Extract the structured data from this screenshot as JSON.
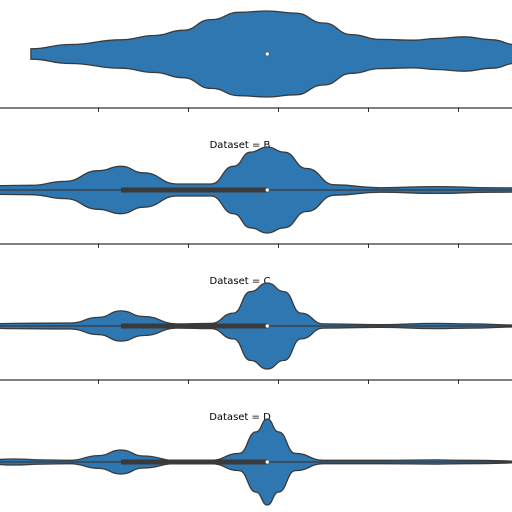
{
  "chart_data": {
    "type": "violin",
    "orientation": "horizontal",
    "panels": [
      {
        "title": "",
        "median": 0.0,
        "iqr": [
          0.0,
          0.0
        ],
        "whisker": [
          0.0,
          0.0
        ],
        "range": [
          -4.2,
          4.4
        ],
        "density": [
          [
            -4.2,
            0.12
          ],
          [
            -3.5,
            0.22
          ],
          [
            -2.6,
            0.33
          ],
          [
            -2.0,
            0.43
          ],
          [
            -1.5,
            0.55
          ],
          [
            -1.0,
            0.8
          ],
          [
            -0.5,
            0.97
          ],
          [
            0.0,
            1.0
          ],
          [
            0.5,
            0.95
          ],
          [
            1.0,
            0.72
          ],
          [
            1.5,
            0.45
          ],
          [
            2.0,
            0.34
          ],
          [
            2.6,
            0.32
          ],
          [
            3.0,
            0.36
          ],
          [
            3.5,
            0.4
          ],
          [
            4.0,
            0.33
          ],
          [
            4.4,
            0.22
          ]
        ]
      },
      {
        "title": "Dataset = B",
        "median": 0.0,
        "iqr": [
          -2.6,
          0.0
        ],
        "whisker": [
          -5.0,
          5.0
        ],
        "range": [
          -5.0,
          5.0
        ],
        "density": [
          [
            -5.0,
            0.1
          ],
          [
            -4.2,
            0.11
          ],
          [
            -3.6,
            0.2
          ],
          [
            -3.0,
            0.45
          ],
          [
            -2.6,
            0.55
          ],
          [
            -2.2,
            0.4
          ],
          [
            -1.6,
            0.14
          ],
          [
            -1.0,
            0.14
          ],
          [
            -0.6,
            0.55
          ],
          [
            -0.3,
            0.88
          ],
          [
            0.0,
            1.0
          ],
          [
            0.3,
            0.88
          ],
          [
            0.7,
            0.5
          ],
          [
            1.2,
            0.12
          ],
          [
            2.0,
            0.05
          ],
          [
            3.0,
            0.08
          ],
          [
            4.0,
            0.05
          ],
          [
            5.0,
            0.04
          ]
        ]
      },
      {
        "title": "Dataset = C",
        "median": 0.0,
        "iqr": [
          -2.6,
          0.0
        ],
        "whisker": [
          -5.0,
          4.5
        ],
        "range": [
          -5.0,
          4.5
        ],
        "density": [
          [
            -5.0,
            0.05
          ],
          [
            -4.5,
            0.06
          ],
          [
            -3.5,
            0.07
          ],
          [
            -3.0,
            0.2
          ],
          [
            -2.6,
            0.35
          ],
          [
            -2.2,
            0.22
          ],
          [
            -1.6,
            0.05
          ],
          [
            -1.0,
            0.06
          ],
          [
            -0.6,
            0.3
          ],
          [
            -0.3,
            0.8
          ],
          [
            0.0,
            1.0
          ],
          [
            0.3,
            0.8
          ],
          [
            0.6,
            0.3
          ],
          [
            1.0,
            0.05
          ],
          [
            2.0,
            0.03
          ],
          [
            3.0,
            0.06
          ],
          [
            3.6,
            0.05
          ],
          [
            4.5,
            0.02
          ]
        ]
      },
      {
        "title": "Dataset = D",
        "median": 0.0,
        "iqr": [
          -2.6,
          0.0
        ],
        "whisker": [
          -5.0,
          5.0
        ],
        "range": [
          -5.0,
          5.0
        ],
        "density": [
          [
            -5.0,
            0.05
          ],
          [
            -4.5,
            0.07
          ],
          [
            -4.0,
            0.05
          ],
          [
            -3.5,
            0.04
          ],
          [
            -3.0,
            0.15
          ],
          [
            -2.6,
            0.28
          ],
          [
            -2.2,
            0.14
          ],
          [
            -1.6,
            0.03
          ],
          [
            -1.0,
            0.04
          ],
          [
            -0.5,
            0.2
          ],
          [
            -0.2,
            0.7
          ],
          [
            0.0,
            1.0
          ],
          [
            0.2,
            0.7
          ],
          [
            0.5,
            0.2
          ],
          [
            1.0,
            0.04
          ],
          [
            2.0,
            0.04
          ],
          [
            3.0,
            0.05
          ],
          [
            3.5,
            0.04
          ],
          [
            5.0,
            0.01
          ]
        ]
      }
    ],
    "xlim": [
      -4.75,
      4.35
    ],
    "xticks": [
      -3,
      -1.4,
      0.2,
      1.8,
      3.4
    ],
    "fill_color": "#2e77b1",
    "edge_color": "#3a3a3a",
    "box_color": "#3a3a3a",
    "median_color": "#ffffff",
    "grid": false
  }
}
